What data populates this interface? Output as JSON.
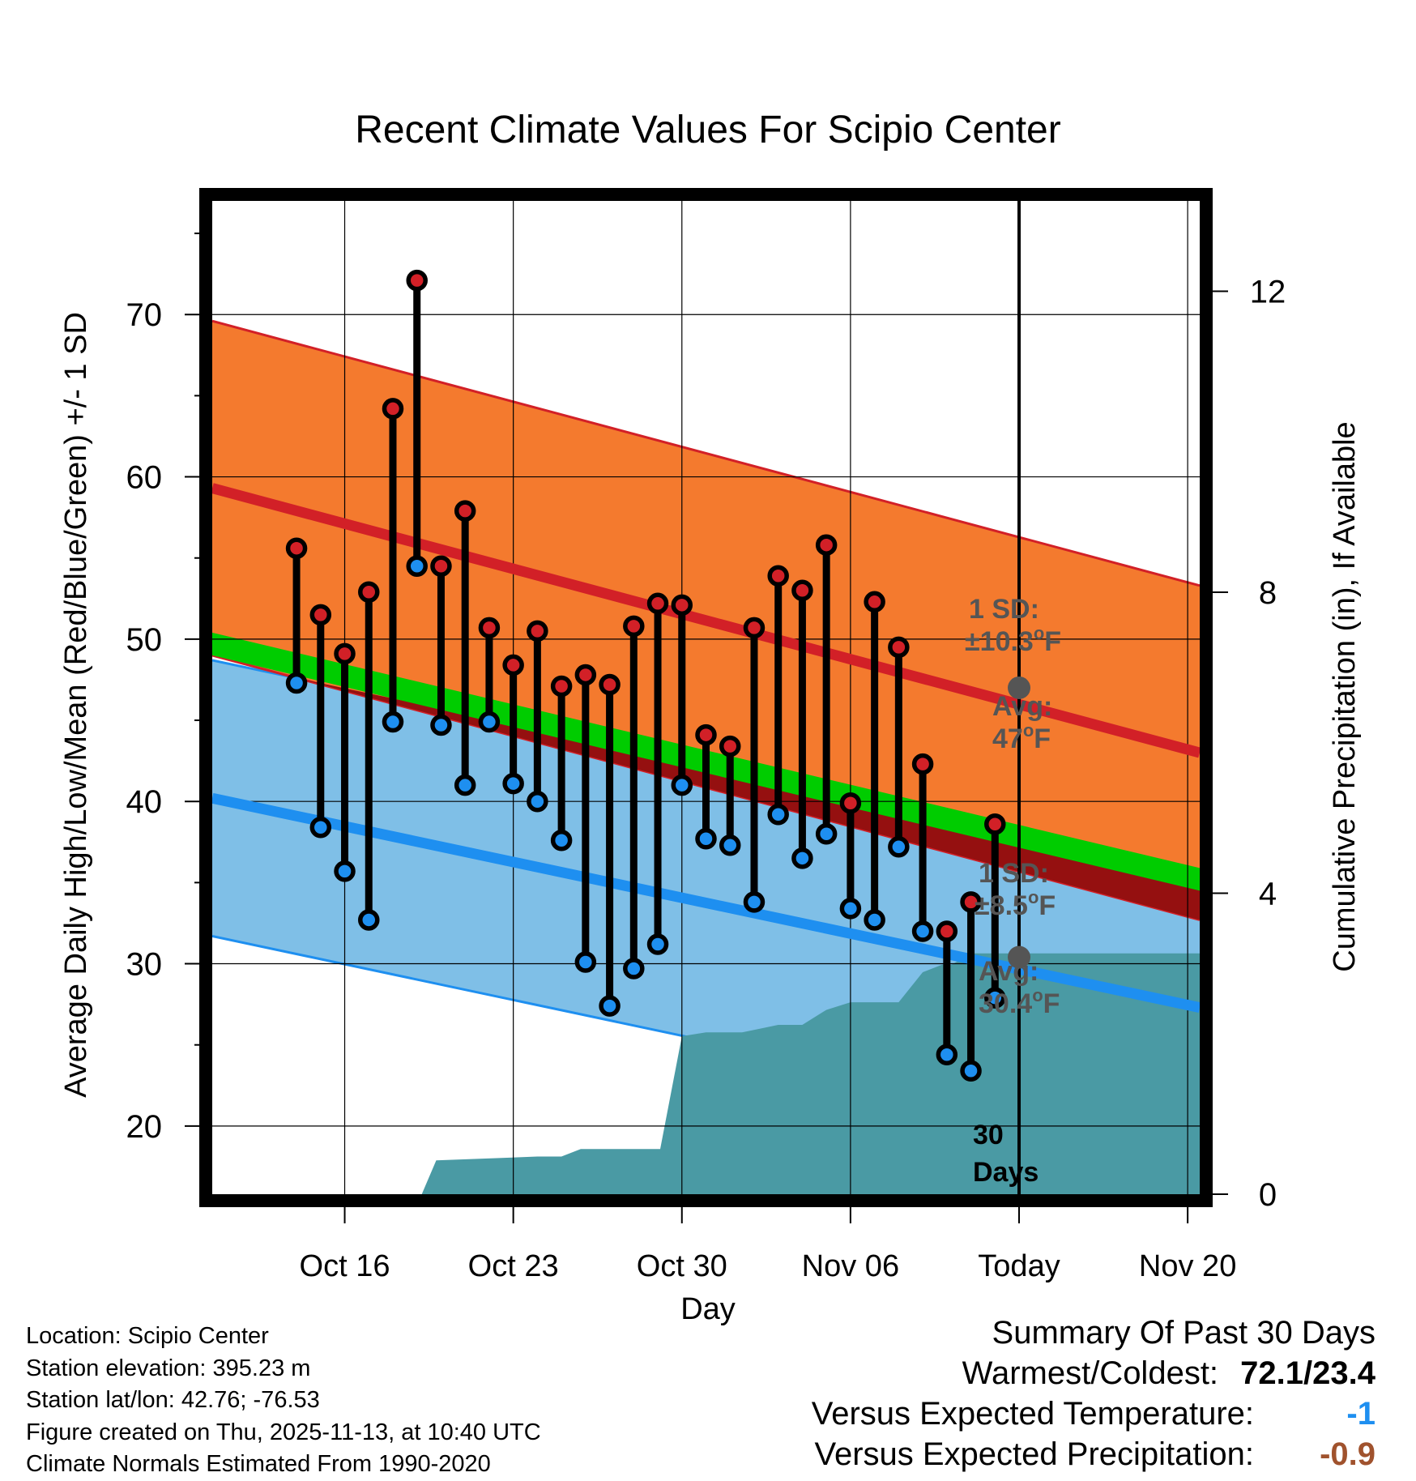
{
  "chart_data": {
    "type": "line",
    "title": "Recent Climate Values For Scipio Center",
    "xlabel": "Day",
    "ylabel": "Average Daily High/Low/Mean (Red/Blue/Green) +/- 1 SD",
    "y2label": "Cumulative Precipitation (in), If Available",
    "x_day_range": [
      -33.5,
      7.5
    ],
    "ylim": [
      15.8,
      77
    ],
    "y_ticks": [
      20,
      30,
      40,
      50,
      60,
      70
    ],
    "y_tick_labels": [
      "20",
      "30",
      "40",
      "50",
      "60",
      "70"
    ],
    "y2lim": [
      0,
      13.2
    ],
    "y2_ticks": [
      0,
      4,
      8,
      12
    ],
    "y2_tick_labels": [
      "0",
      "4",
      "8",
      "12"
    ],
    "x_ticks": [
      -28,
      -21,
      -14,
      -7,
      0,
      7
    ],
    "x_tick_labels": [
      "Oct 16",
      "Oct 23",
      "Oct 30",
      "Nov 06",
      "Today",
      "Nov 20"
    ],
    "today_day": 0,
    "colors": {
      "high_band": "#f47a2e",
      "high_line": "#d22027",
      "low_band": "#7fbfe7",
      "low_line": "#1e8ff0",
      "mean_band": "#00cc00",
      "overlap": "#951010",
      "precip": "#4a9aa4",
      "marker_label": "#555555",
      "versus_temp": "#1e8ff0",
      "versus_precip": "#a0522d"
    },
    "normal_high": {
      "start": 59.3,
      "end": 43.0,
      "sd": 10.3
    },
    "normal_low": {
      "start": 40.2,
      "end": 27.3,
      "sd": 8.5
    },
    "normal_mean": {
      "start": 49.7,
      "end": 35.2
    },
    "days": [
      -30,
      -29,
      -28,
      -27,
      -26,
      -25,
      -24,
      -23,
      -22,
      -21,
      -20,
      -19,
      -18,
      -17,
      -16,
      -15,
      -14,
      -13,
      -12,
      -11,
      -10,
      -9,
      -8,
      -7,
      -6,
      -5,
      -4,
      -3,
      -2,
      -1
    ],
    "highs": [
      55.6,
      51.5,
      49.1,
      52.9,
      64.2,
      72.1,
      54.5,
      57.9,
      50.7,
      48.4,
      50.5,
      47.1,
      47.8,
      47.2,
      50.8,
      52.2,
      52.1,
      44.1,
      43.4,
      50.7,
      53.9,
      53.0,
      55.8,
      39.9,
      52.3,
      49.5,
      42.3,
      32.0,
      33.8,
      38.6
    ],
    "lows": [
      47.3,
      38.4,
      35.7,
      32.7,
      44.9,
      54.5,
      44.7,
      41.0,
      44.9,
      41.1,
      40.0,
      37.6,
      30.1,
      27.4,
      29.7,
      31.2,
      41.0,
      37.7,
      37.3,
      33.8,
      39.2,
      36.5,
      38.0,
      33.4,
      32.7,
      37.2,
      32.0,
      24.4,
      23.4,
      27.9
    ],
    "precip_days": [
      -33.5,
      -24.8,
      -24.2,
      -20.0,
      -19.0,
      -18.2,
      -17.5,
      -14.9,
      -14.0,
      -13.0,
      -11.5,
      -10.0,
      -9.0,
      -8.0,
      -7.0,
      -6.0,
      -5.0,
      -4.0,
      -3.2,
      -2.8,
      -2.0,
      7.5
    ],
    "precip": [
      0.0,
      0.0,
      0.45,
      0.5,
      0.5,
      0.6,
      0.6,
      0.6,
      2.1,
      2.15,
      2.15,
      2.25,
      2.25,
      2.45,
      2.55,
      2.55,
      2.55,
      2.95,
      3.05,
      3.05,
      3.2,
      3.2
    ],
    "high_marker": {
      "label1": "1 SD:",
      "label2": "±10.3",
      "unit2": "F",
      "avg_label": "Avg:",
      "avg_value": "47",
      "avg_unit": "F",
      "value": 47.0
    },
    "low_marker": {
      "label1": "1 SD:",
      "label2": "±8.5",
      "unit2": "F",
      "avg_label": "Avg:",
      "avg_value": "30.4",
      "avg_unit": "F",
      "value": 30.4
    },
    "degree_symbol": "o",
    "window_label_1": "30",
    "window_label_2": "Days"
  },
  "info": {
    "location": "Location: Scipio Center",
    "elevation": "Station elevation: 395.23 m",
    "latlon": "Station lat/lon: 42.76; -76.53",
    "created": "Figure created on Thu, 2025-11-13, at 10:40 UTC",
    "normals": "Climate Normals Estimated From 1990-2020"
  },
  "summary": {
    "title": "Summary Of Past 30 Days",
    "warm_cold_label": "Warmest/Coldest:",
    "warm_cold_value": "72.1/23.4",
    "versus_temp_label": "Versus Expected Temperature:",
    "versus_temp_value": "-1",
    "versus_precip_label": "Versus Expected Precipitation:",
    "versus_precip_value": "-0.9"
  }
}
